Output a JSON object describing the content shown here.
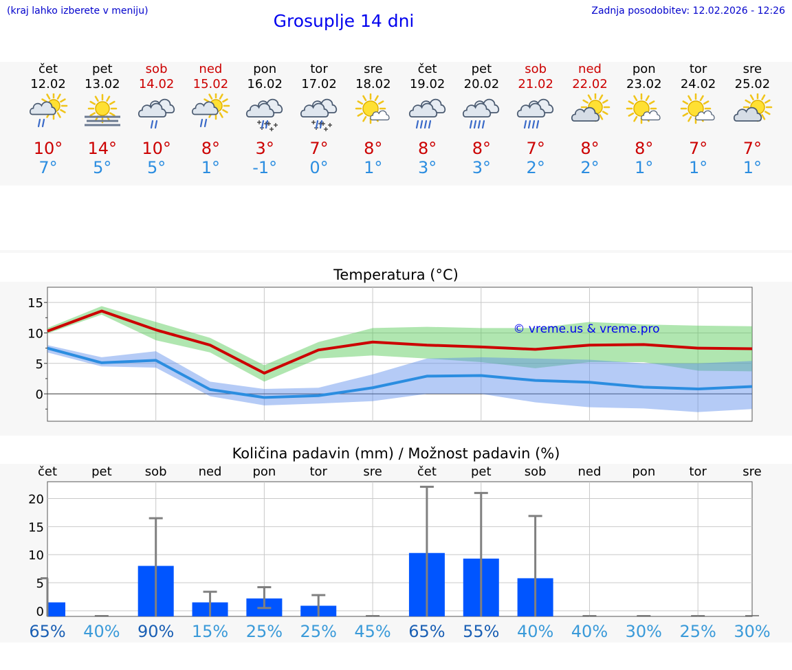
{
  "header": {
    "hint": "(kraj lahko izberete v meniju)",
    "title": "Grosuplje 14 dni",
    "updated": "Zadnja posodobitev: 12.02.2026 - 12:26"
  },
  "colors": {
    "max": "#cc0000",
    "min": "#2b8de0",
    "bar": "#0055ff",
    "weekend": "#cc0000"
  },
  "days": [
    {
      "name": "čet",
      "date": "12.02",
      "weekend": false,
      "icon": "partly-cloudy-light-rain-icon",
      "max": "10°",
      "min": "7°"
    },
    {
      "name": "pet",
      "date": "13.02",
      "weekend": false,
      "icon": "sun-fog-icon",
      "max": "14°",
      "min": "5°"
    },
    {
      "name": "sob",
      "date": "14.02",
      "weekend": true,
      "icon": "cloudy-light-rain-icon",
      "max": "10°",
      "min": "5°"
    },
    {
      "name": "ned",
      "date": "15.02",
      "weekend": true,
      "icon": "partly-cloudy-light-rain-icon",
      "max": "8°",
      "min": "1°"
    },
    {
      "name": "pon",
      "date": "16.02",
      "weekend": false,
      "icon": "cloudy-rain-snow-icon",
      "max": "3°",
      "min": "-1°"
    },
    {
      "name": "tor",
      "date": "17.02",
      "weekend": false,
      "icon": "cloudy-rain-snow-icon",
      "max": "7°",
      "min": "0°"
    },
    {
      "name": "sre",
      "date": "18.02",
      "weekend": false,
      "icon": "sun-small-cloud-icon",
      "max": "8°",
      "min": "1°"
    },
    {
      "name": "čet",
      "date": "19.02",
      "weekend": false,
      "icon": "cloudy-rain-icon",
      "max": "8°",
      "min": "3°"
    },
    {
      "name": "pet",
      "date": "20.02",
      "weekend": false,
      "icon": "cloudy-rain-icon",
      "max": "8°",
      "min": "3°"
    },
    {
      "name": "sob",
      "date": "21.02",
      "weekend": true,
      "icon": "cloudy-rain-icon",
      "max": "7°",
      "min": "2°"
    },
    {
      "name": "ned",
      "date": "22.02",
      "weekend": true,
      "icon": "partly-cloudy-icon",
      "max": "8°",
      "min": "2°"
    },
    {
      "name": "pon",
      "date": "23.02",
      "weekend": false,
      "icon": "sun-small-cloud-icon",
      "max": "8°",
      "min": "1°"
    },
    {
      "name": "tor",
      "date": "24.02",
      "weekend": false,
      "icon": "sun-small-cloud-icon",
      "max": "7°",
      "min": "1°"
    },
    {
      "name": "sre",
      "date": "25.02",
      "weekend": false,
      "icon": "partly-cloudy-icon",
      "max": "7°",
      "min": "1°"
    }
  ],
  "chart_data": [
    {
      "type": "line",
      "title": "Temperatura (°C)",
      "watermark": "© vreme.us & vreme.pro",
      "x": [
        0,
        1,
        2,
        3,
        4,
        5,
        6,
        7,
        8,
        9,
        10,
        11,
        12,
        13
      ],
      "ylim": [
        -4.5,
        17.5
      ],
      "yticks": [
        0,
        5,
        10,
        15
      ],
      "series": [
        {
          "name": "max",
          "values": [
            10.3,
            13.6,
            10.5,
            8.0,
            3.4,
            7.2,
            8.5,
            8.0,
            7.7,
            7.3,
            8.0,
            8.1,
            7.5,
            7.4
          ],
          "band_low": [
            9.9,
            13.0,
            8.8,
            6.8,
            2.0,
            5.8,
            6.3,
            5.8,
            5.2,
            4.2,
            5.2,
            5.2,
            3.8,
            3.7
          ],
          "band_high": [
            10.8,
            14.4,
            11.8,
            9.2,
            4.7,
            8.5,
            10.8,
            11.0,
            10.8,
            10.8,
            11.8,
            11.4,
            11.2,
            11.1
          ]
        },
        {
          "name": "min",
          "values": [
            7.5,
            5.1,
            5.5,
            0.7,
            -0.6,
            -0.3,
            1.0,
            2.9,
            3.0,
            2.2,
            1.9,
            1.1,
            0.8,
            1.2
          ],
          "band_low": [
            6.8,
            4.5,
            4.3,
            -0.4,
            -1.9,
            -1.6,
            -1.2,
            0.0,
            0.0,
            -1.4,
            -2.2,
            -2.4,
            -3.0,
            -2.5
          ],
          "band_high": [
            8.0,
            6.0,
            7.0,
            2.0,
            0.8,
            1.0,
            3.2,
            5.8,
            6.0,
            5.8,
            5.6,
            5.0,
            5.0,
            5.4
          ]
        }
      ]
    },
    {
      "type": "bar",
      "title": "Količina padavin (mm) / Možnost padavin (%)",
      "categories": [
        "čet",
        "pet",
        "sob",
        "ned",
        "pon",
        "tor",
        "sre",
        "čet",
        "pet",
        "sob",
        "ned",
        "pon",
        "tor",
        "sre"
      ],
      "ylim": [
        -1,
        23
      ],
      "yticks": [
        0,
        5,
        10,
        15,
        20
      ],
      "values": [
        1.5,
        0,
        8.0,
        1.5,
        2.2,
        0.9,
        0,
        10.3,
        9.3,
        5.8,
        0,
        0,
        0,
        0
      ],
      "error_low": [
        0,
        0,
        0,
        0,
        0.5,
        0,
        0,
        0,
        0,
        0,
        0,
        0,
        0,
        0
      ],
      "error_high": [
        5.8,
        0,
        16.5,
        3.4,
        4.2,
        2.8,
        0,
        22.1,
        21.0,
        16.9,
        0,
        0,
        0,
        0
      ],
      "probability": [
        "65%",
        "40%",
        "90%",
        "15%",
        "25%",
        "25%",
        "45%",
        "65%",
        "55%",
        "40%",
        "40%",
        "30%",
        "25%",
        "30%"
      ],
      "probability_dark": [
        true,
        false,
        true,
        false,
        false,
        false,
        false,
        true,
        true,
        false,
        false,
        false,
        false,
        false
      ]
    }
  ]
}
